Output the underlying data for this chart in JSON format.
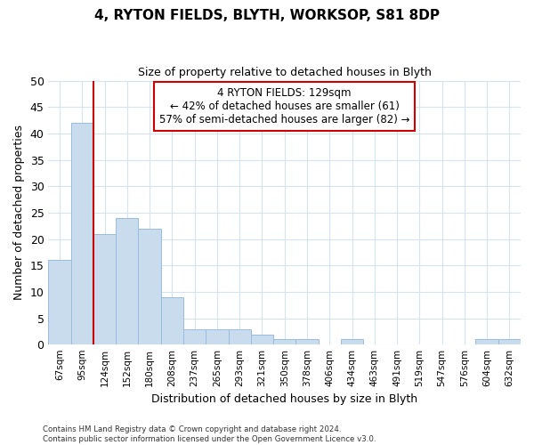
{
  "title1": "4, RYTON FIELDS, BLYTH, WORKSOP, S81 8DP",
  "title2": "Size of property relative to detached houses in Blyth",
  "xlabel": "Distribution of detached houses by size in Blyth",
  "ylabel": "Number of detached properties",
  "categories": [
    "67sqm",
    "95sqm",
    "124sqm",
    "152sqm",
    "180sqm",
    "208sqm",
    "237sqm",
    "265sqm",
    "293sqm",
    "321sqm",
    "350sqm",
    "378sqm",
    "406sqm",
    "434sqm",
    "463sqm",
    "491sqm",
    "519sqm",
    "547sqm",
    "576sqm",
    "604sqm",
    "632sqm"
  ],
  "values": [
    16,
    42,
    21,
    24,
    22,
    9,
    3,
    3,
    3,
    2,
    1,
    1,
    0,
    1,
    0,
    0,
    0,
    0,
    0,
    1,
    1
  ],
  "bar_color": "#c8dcee",
  "bar_edge_color": "#99bbdd",
  "grid_color": "#d5e3f0",
  "vline_x": 2,
  "vline_color": "#cc0000",
  "annotation_text": "4 RYTON FIELDS: 129sqm\n← 42% of detached houses are smaller (61)\n57% of semi-detached houses are larger (82) →",
  "annotation_box_color": "#ffffff",
  "annotation_box_edge": "#cc0000",
  "footer_text": "Contains HM Land Registry data © Crown copyright and database right 2024.\nContains public sector information licensed under the Open Government Licence v3.0.",
  "ylim": [
    0,
    50
  ],
  "yticks": [
    0,
    5,
    10,
    15,
    20,
    25,
    30,
    35,
    40,
    45,
    50
  ],
  "bg_color": "#ffffff",
  "title1_fontsize": 11,
  "title2_fontsize": 9
}
